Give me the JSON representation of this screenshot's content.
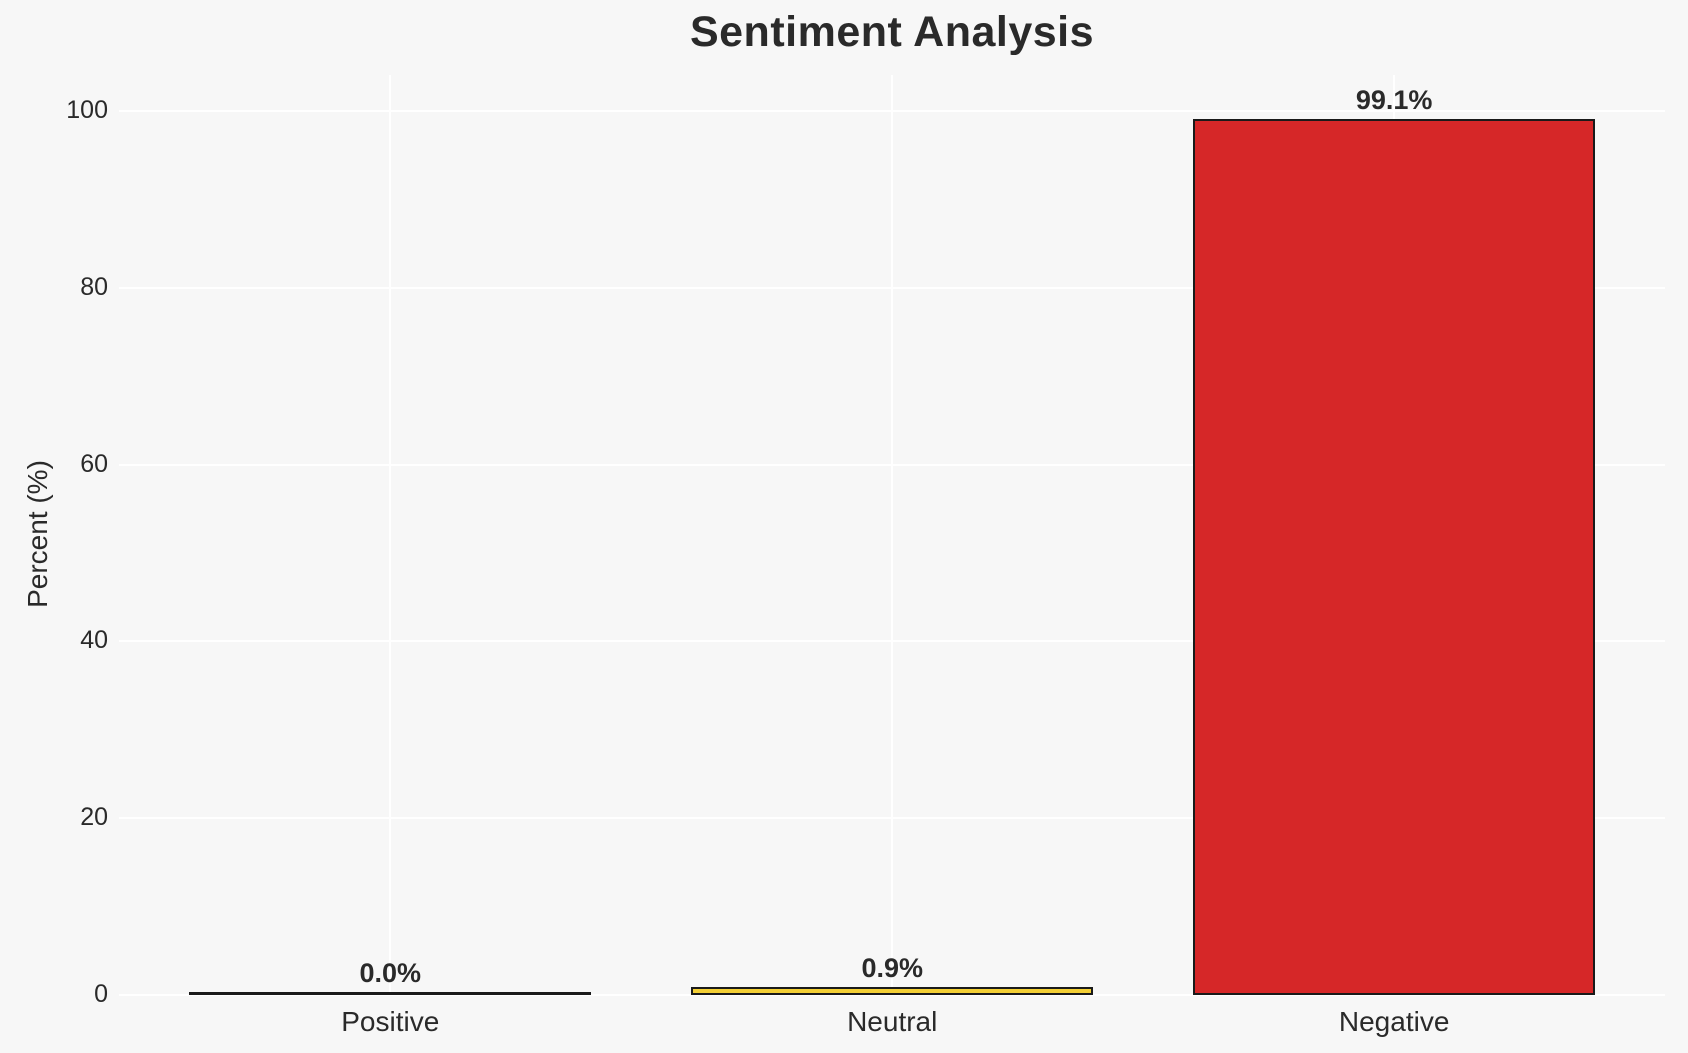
{
  "chart_data": {
    "type": "bar",
    "title": "Sentiment Analysis",
    "xlabel": "",
    "ylabel": "Percent (%)",
    "categories": [
      "Positive",
      "Neutral",
      "Negative"
    ],
    "values": [
      0.0,
      0.9,
      99.1
    ],
    "value_labels": [
      "0.0%",
      "0.9%",
      "99.1%"
    ],
    "bar_colors": [
      null,
      "#F3CF35",
      "#D62728"
    ],
    "bar_edge_color": "#1a1a1a",
    "yticks": [
      0,
      20,
      40,
      60,
      80,
      100
    ],
    "ylim": [
      0,
      100
    ],
    "grid": true,
    "legend": false,
    "colors": {
      "background": "#f7f7f7",
      "gridline": "#ffffff",
      "text": "#2a2a2a"
    }
  }
}
